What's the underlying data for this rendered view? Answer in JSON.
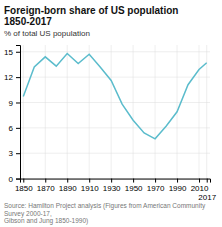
{
  "chart_data": {
    "type": "line",
    "title": "Foreign-born share of US population 1850-2017",
    "ylabel": "% of total US population",
    "source": "Source: Hamilton Project analysis (Figures from American Community Survey 2000-17,\nGibson and Jung 1850-1990)",
    "x": [
      1850,
      1860,
      1870,
      1880,
      1890,
      1900,
      1910,
      1920,
      1930,
      1940,
      1950,
      1960,
      1970,
      1980,
      1990,
      2000,
      2010,
      2017
    ],
    "values": [
      9.7,
      13.2,
      14.4,
      13.3,
      14.8,
      13.6,
      14.7,
      13.2,
      11.6,
      8.8,
      6.9,
      5.4,
      4.7,
      6.2,
      7.9,
      11.1,
      12.9,
      13.7
    ],
    "color": "#5bbccc",
    "xlim": [
      1847,
      2020
    ],
    "ylim": [
      0,
      15.8
    ],
    "xticks": [
      1850,
      1870,
      1890,
      1910,
      1930,
      1950,
      1970,
      1990,
      2010,
      2017
    ],
    "yticks": [
      0,
      3,
      6,
      9,
      12,
      15
    ],
    "grid": true
  }
}
